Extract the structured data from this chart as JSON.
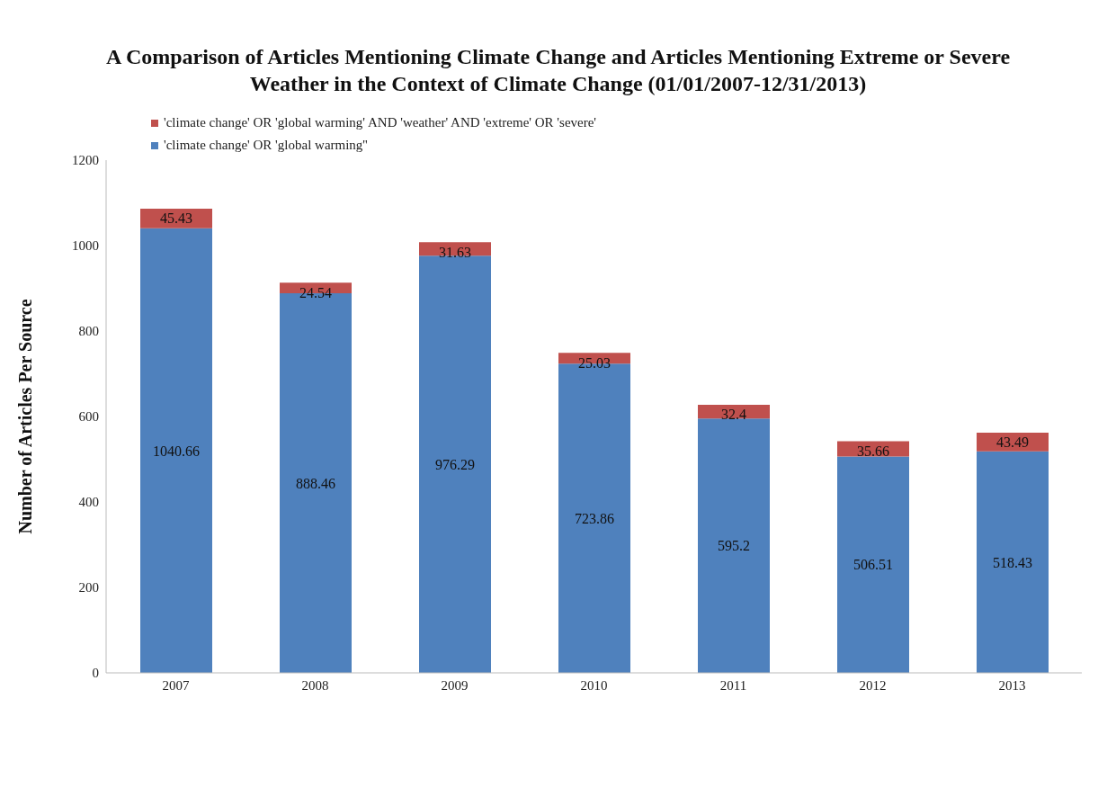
{
  "chart_data": {
    "type": "bar",
    "title": "A Comparison of Articles Mentioning Climate Change and Articles Mentioning Extreme or Severe Weather in the Context of Climate Change (01/01/2007-12/31/2013)",
    "ylabel": "Number of Articles Per Source",
    "categories": [
      "2007",
      "2008",
      "2009",
      "2010",
      "2011",
      "2012",
      "2013"
    ],
    "stacked": true,
    "data_labels": true,
    "legend": "top",
    "grid": false,
    "ylim": [
      0,
      1200
    ],
    "yticks": [
      0,
      200,
      400,
      600,
      800,
      1000,
      1200
    ],
    "series": [
      {
        "name": "'climate change' OR 'global warming''",
        "color": "#4f81bd",
        "values": [
          1040.66,
          888.46,
          976.29,
          723.86,
          595.2,
          506.51,
          518.43
        ]
      },
      {
        "name": "'climate change' OR 'global warming' AND 'weather' AND 'extreme' OR 'severe'",
        "color": "#c0504d",
        "values": [
          45.43,
          24.54,
          31.63,
          25.03,
          32.4,
          35.66,
          43.49
        ]
      }
    ]
  }
}
